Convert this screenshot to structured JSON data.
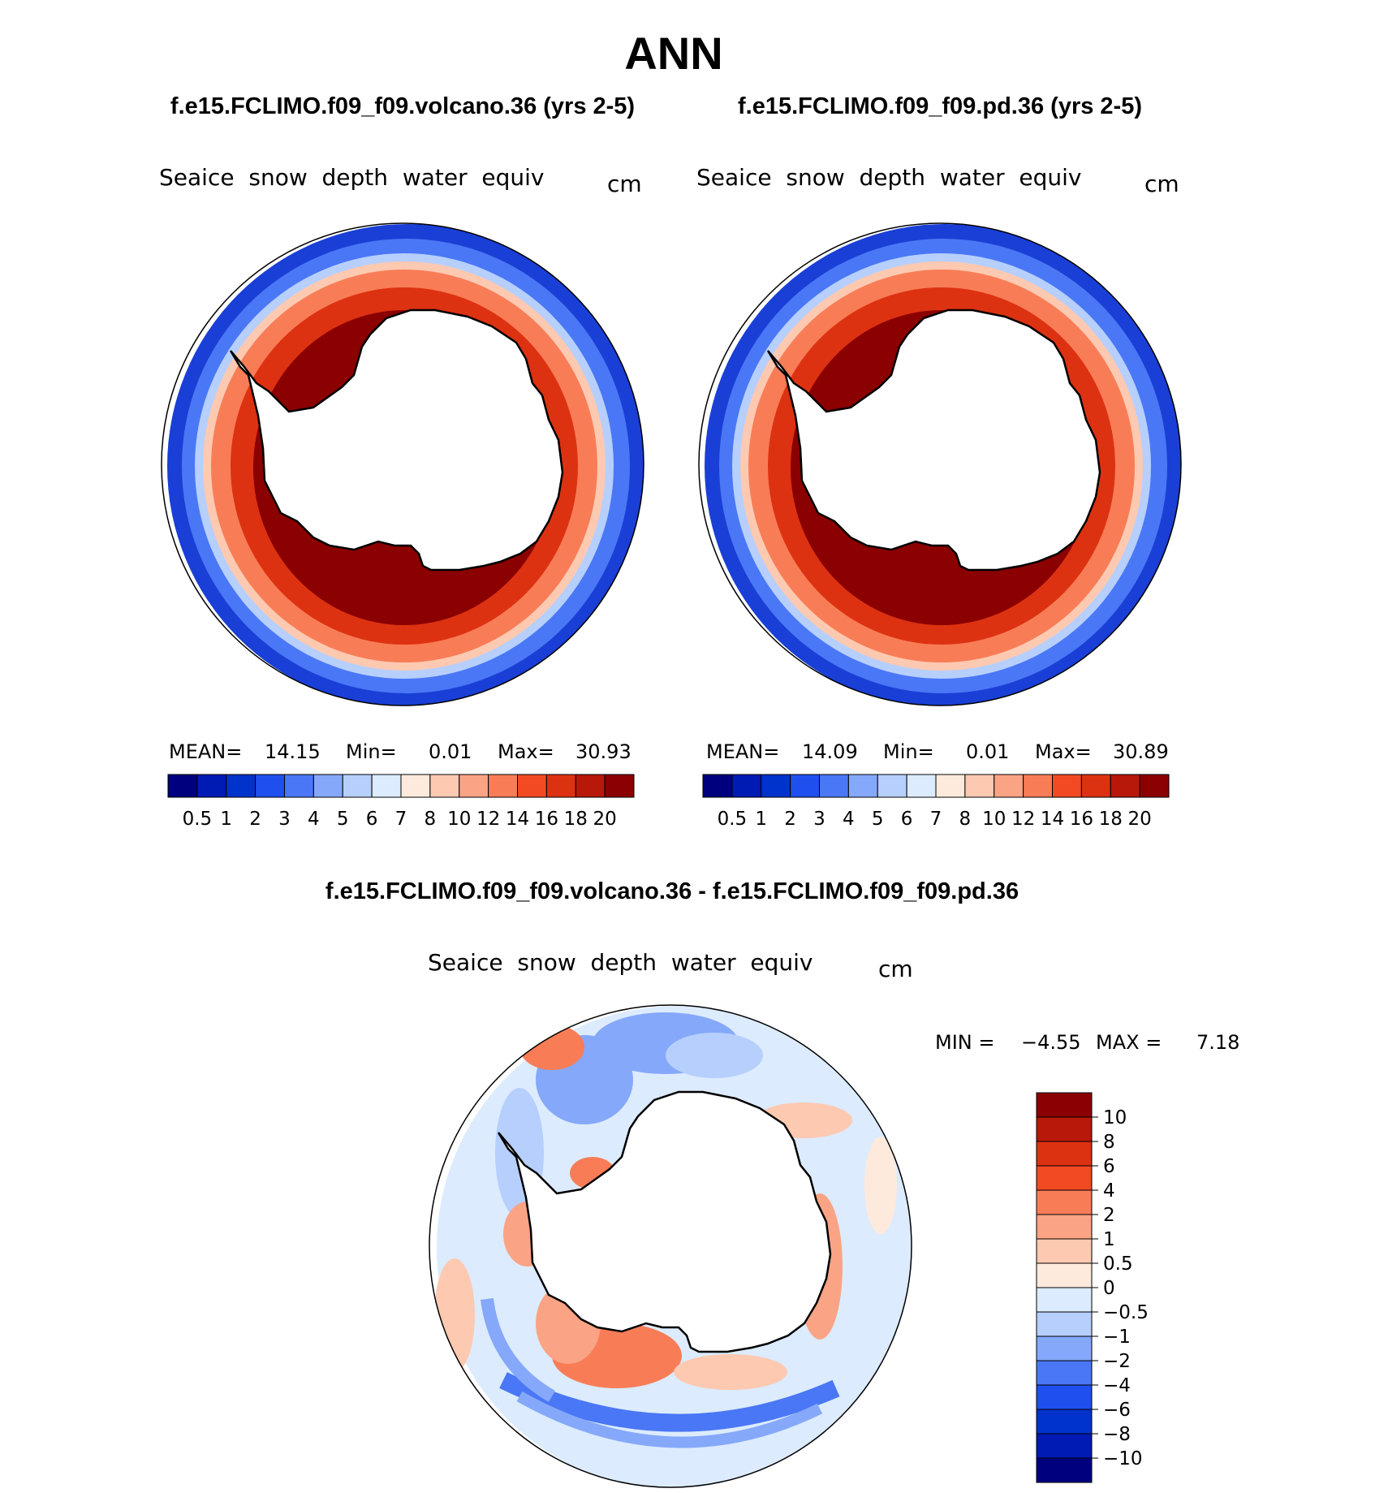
{
  "page_title": "ANN",
  "chart_data": [
    {
      "type": "heatmap",
      "projection": "south-polar-stereographic",
      "title": "f.e15.FCLIMO.f09_f09.volcano.36 (yrs 2-5)",
      "variable": "Seaice  snow  depth  water  equiv",
      "units": "cm",
      "stats": {
        "mean_label": "MEAN=",
        "mean": "14.15",
        "min_label": "Min=",
        "min": "0.01",
        "max_label": "Max=",
        "max": "30.93"
      },
      "colorbar": {
        "orientation": "horizontal",
        "colors": [
          "#00007f",
          "#001ab4",
          "#0033cc",
          "#1f4fef",
          "#4a77f5",
          "#85a8fa",
          "#b6cffd",
          "#dcebfe",
          "#feeadc",
          "#fdc9b1",
          "#fba385",
          "#f87d57",
          "#f24a23",
          "#dd3211",
          "#b8180a",
          "#8b0000"
        ],
        "tick_labels": [
          "0.5",
          "1",
          "2",
          "3",
          "4",
          "5",
          "6",
          "7",
          "8",
          "10",
          "12",
          "14",
          "16",
          "18",
          "20"
        ]
      }
    },
    {
      "type": "heatmap",
      "projection": "south-polar-stereographic",
      "title": "f.e15.FCLIMO.f09_f09.pd.36 (yrs 2-5)",
      "variable": "Seaice  snow  depth  water  equiv",
      "units": "cm",
      "stats": {
        "mean_label": "MEAN=",
        "mean": "14.09",
        "min_label": "Min=",
        "min": "0.01",
        "max_label": "Max=",
        "max": "30.89"
      },
      "colorbar": {
        "orientation": "horizontal",
        "colors": [
          "#00007f",
          "#001ab4",
          "#0033cc",
          "#1f4fef",
          "#4a77f5",
          "#85a8fa",
          "#b6cffd",
          "#dcebfe",
          "#feeadc",
          "#fdc9b1",
          "#fba385",
          "#f87d57",
          "#f24a23",
          "#dd3211",
          "#b8180a",
          "#8b0000"
        ],
        "tick_labels": [
          "0.5",
          "1",
          "2",
          "3",
          "4",
          "5",
          "6",
          "7",
          "8",
          "10",
          "12",
          "14",
          "16",
          "18",
          "20"
        ]
      }
    },
    {
      "type": "heatmap",
      "projection": "south-polar-stereographic",
      "title": "f.e15.FCLIMO.f09_f09.volcano.36 - f.e15.FCLIMO.f09_f09.pd.36",
      "variable": "Seaice  snow  depth  water  equiv",
      "units": "cm",
      "stats": {
        "min_label": "MIN =",
        "min": "−4.55",
        "max_label": "MAX =",
        "max": "7.18"
      },
      "colorbar": {
        "orientation": "vertical",
        "colors_top_to_bottom": [
          "#8b0000",
          "#b8180a",
          "#dd3211",
          "#f24a23",
          "#f87d57",
          "#fba385",
          "#fdc9b1",
          "#feeadc",
          "#dcebfe",
          "#b6cffd",
          "#85a8fa",
          "#4a77f5",
          "#1f4fef",
          "#0033cc",
          "#001ab4",
          "#00007f"
        ],
        "tick_labels_top_to_bottom": [
          "10",
          "8",
          "6",
          "4",
          "2",
          "1",
          "0.5",
          "0",
          "−0.5",
          "−1",
          "−2",
          "−4",
          "−6",
          "−8",
          "−10"
        ]
      }
    }
  ]
}
